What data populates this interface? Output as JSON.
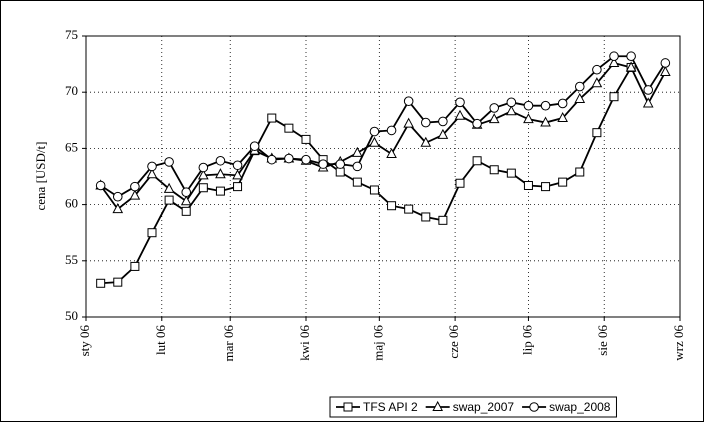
{
  "chart_data": {
    "type": "line",
    "ylabel": "cena [USD/t]",
    "x": [
      6,
      13,
      20,
      27,
      34,
      41,
      48,
      55,
      62,
      69,
      76,
      83,
      90,
      97,
      104,
      111,
      118,
      125,
      132,
      139,
      146,
      153,
      160,
      167,
      174,
      181,
      188,
      195,
      202,
      209,
      216,
      223,
      230,
      237
    ],
    "xlim": [
      0,
      243
    ],
    "xticks": [
      {
        "value": 0,
        "label": "sty 06"
      },
      {
        "value": 31,
        "label": "lut 06"
      },
      {
        "value": 59,
        "label": "mar 06"
      },
      {
        "value": 90,
        "label": "kwi 06"
      },
      {
        "value": 120,
        "label": "maj 06"
      },
      {
        "value": 151,
        "label": "cze 06"
      },
      {
        "value": 181,
        "label": "lip 06"
      },
      {
        "value": 212,
        "label": "sie 06"
      },
      {
        "value": 243,
        "label": "wrz 06"
      }
    ],
    "ylim": [
      50,
      75
    ],
    "yticks": [
      50,
      55,
      60,
      65,
      70,
      75
    ],
    "grid": true,
    "legend": "bottom",
    "series": [
      {
        "name": "TFS API 2",
        "color": "#000000",
        "marker": "square",
        "values": [
          53.0,
          53.1,
          54.5,
          57.5,
          60.4,
          59.4,
          61.5,
          61.2,
          61.6,
          64.8,
          67.7,
          66.8,
          65.8,
          64.0,
          62.9,
          62.0,
          61.3,
          59.9,
          59.6,
          58.9,
          58.6,
          61.9,
          63.9,
          63.1,
          62.8,
          61.7,
          61.6,
          62.0,
          62.9,
          66.4,
          69.6,
          72.2,
          null,
          null
        ]
      },
      {
        "name": "swap_2007",
        "color": "#000000",
        "marker": "triangle",
        "values": [
          61.7,
          59.6,
          60.8,
          62.7,
          61.4,
          60.3,
          62.6,
          62.7,
          62.6,
          64.8,
          64.1,
          64.1,
          63.9,
          63.3,
          63.8,
          64.6,
          65.5,
          64.5,
          67.2,
          65.5,
          66.2,
          67.9,
          67.1,
          67.6,
          68.3,
          67.6,
          67.3,
          67.7,
          69.4,
          70.8,
          72.6,
          72.2,
          69.0,
          71.8
        ]
      },
      {
        "name": "swap_2008",
        "color": "#000000",
        "marker": "circle",
        "values": [
          61.7,
          60.7,
          61.6,
          63.4,
          63.8,
          61.1,
          63.3,
          63.9,
          63.5,
          65.2,
          64.0,
          64.1,
          64.0,
          63.6,
          63.6,
          63.4,
          66.5,
          66.6,
          69.2,
          67.3,
          67.4,
          69.1,
          67.2,
          68.6,
          69.1,
          68.8,
          68.8,
          69.0,
          70.5,
          72.0,
          73.2,
          73.2,
          70.2,
          72.6
        ]
      }
    ]
  }
}
